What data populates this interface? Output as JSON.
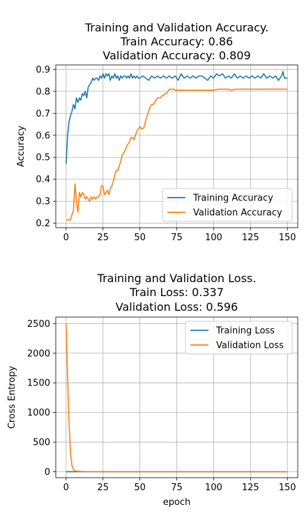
{
  "chart_data": [
    {
      "type": "line",
      "title_lines": [
        "Training and Validation Accuracy.",
        "Train Accuracy: 0.86",
        "Validation Accuracy: 0.809"
      ],
      "xlabel": "",
      "ylabel": "Accuracy",
      "xlim": [
        -7,
        157
      ],
      "ylim": [
        0.18,
        0.92
      ],
      "xticks": [
        0,
        25,
        50,
        75,
        100,
        125,
        150
      ],
      "yticks": [
        0.2,
        0.3,
        0.4,
        0.5,
        0.6,
        0.7,
        0.8,
        0.9
      ],
      "grid": true,
      "legend_position": "lower-right",
      "series": [
        {
          "name": "Training Accuracy",
          "color": "#1f77b4",
          "points": [
            [
              0,
              0.47
            ],
            [
              1,
              0.6
            ],
            [
              2,
              0.66
            ],
            [
              3,
              0.69
            ],
            [
              4,
              0.71
            ],
            [
              5,
              0.74
            ],
            [
              6,
              0.72
            ],
            [
              7,
              0.77
            ],
            [
              8,
              0.75
            ],
            [
              9,
              0.77
            ],
            [
              10,
              0.76
            ],
            [
              11,
              0.79
            ],
            [
              12,
              0.78
            ],
            [
              13,
              0.8
            ],
            [
              14,
              0.77
            ],
            [
              15,
              0.82
            ],
            [
              16,
              0.83
            ],
            [
              17,
              0.84
            ],
            [
              18,
              0.86
            ],
            [
              19,
              0.85
            ],
            [
              20,
              0.86
            ],
            [
              21,
              0.86
            ],
            [
              22,
              0.85
            ],
            [
              23,
              0.87
            ],
            [
              24,
              0.86
            ],
            [
              25,
              0.88
            ],
            [
              26,
              0.86
            ],
            [
              27,
              0.88
            ],
            [
              28,
              0.87
            ],
            [
              29,
              0.88
            ],
            [
              30,
              0.85
            ],
            [
              31,
              0.87
            ],
            [
              32,
              0.86
            ],
            [
              33,
              0.88
            ],
            [
              34,
              0.86
            ],
            [
              35,
              0.87
            ],
            [
              36,
              0.85
            ],
            [
              37,
              0.87
            ],
            [
              38,
              0.86
            ],
            [
              39,
              0.87
            ],
            [
              40,
              0.87
            ],
            [
              41,
              0.86
            ],
            [
              42,
              0.87
            ],
            [
              43,
              0.86
            ],
            [
              44,
              0.88
            ],
            [
              45,
              0.86
            ],
            [
              46,
              0.87
            ],
            [
              47,
              0.86
            ],
            [
              48,
              0.87
            ],
            [
              49,
              0.86
            ],
            [
              50,
              0.86
            ],
            [
              52,
              0.87
            ],
            [
              54,
              0.86
            ],
            [
              56,
              0.85
            ],
            [
              58,
              0.87
            ],
            [
              60,
              0.86
            ],
            [
              62,
              0.87
            ],
            [
              64,
              0.86
            ],
            [
              66,
              0.87
            ],
            [
              68,
              0.86
            ],
            [
              70,
              0.87
            ],
            [
              72,
              0.86
            ],
            [
              74,
              0.87
            ],
            [
              76,
              0.85
            ],
            [
              78,
              0.88
            ],
            [
              80,
              0.86
            ],
            [
              82,
              0.87
            ],
            [
              84,
              0.86
            ],
            [
              86,
              0.87
            ],
            [
              88,
              0.86
            ],
            [
              90,
              0.87
            ],
            [
              92,
              0.87
            ],
            [
              94,
              0.86
            ],
            [
              96,
              0.85
            ],
            [
              98,
              0.87
            ],
            [
              100,
              0.86
            ],
            [
              102,
              0.88
            ],
            [
              104,
              0.87
            ],
            [
              106,
              0.88
            ],
            [
              108,
              0.86
            ],
            [
              110,
              0.87
            ],
            [
              112,
              0.86
            ],
            [
              114,
              0.88
            ],
            [
              116,
              0.86
            ],
            [
              118,
              0.87
            ],
            [
              120,
              0.86
            ],
            [
              122,
              0.87
            ],
            [
              124,
              0.86
            ],
            [
              126,
              0.87
            ],
            [
              128,
              0.86
            ],
            [
              130,
              0.87
            ],
            [
              132,
              0.86
            ],
            [
              134,
              0.88
            ],
            [
              136,
              0.86
            ],
            [
              138,
              0.87
            ],
            [
              140,
              0.86
            ],
            [
              142,
              0.87
            ],
            [
              144,
              0.85
            ],
            [
              146,
              0.87
            ],
            [
              147,
              0.89
            ],
            [
              148,
              0.86
            ],
            [
              150,
              0.86
            ]
          ]
        },
        {
          "name": "Validation Accuracy",
          "color": "#ff7f0e",
          "points": [
            [
              0,
              0.215
            ],
            [
              2,
              0.215
            ],
            [
              3,
              0.215
            ],
            [
              4,
              0.24
            ],
            [
              5,
              0.26
            ],
            [
              6,
              0.38
            ],
            [
              7,
              0.3
            ],
            [
              8,
              0.25
            ],
            [
              9,
              0.34
            ],
            [
              10,
              0.32
            ],
            [
              11,
              0.34
            ],
            [
              12,
              0.33
            ],
            [
              13,
              0.31
            ],
            [
              14,
              0.32
            ],
            [
              15,
              0.31
            ],
            [
              16,
              0.3
            ],
            [
              17,
              0.32
            ],
            [
              18,
              0.31
            ],
            [
              19,
              0.32
            ],
            [
              20,
              0.31
            ],
            [
              21,
              0.32
            ],
            [
              22,
              0.32
            ],
            [
              23,
              0.33
            ],
            [
              24,
              0.37
            ],
            [
              25,
              0.37
            ],
            [
              26,
              0.33
            ],
            [
              27,
              0.34
            ],
            [
              28,
              0.35
            ],
            [
              29,
              0.33
            ],
            [
              30,
              0.36
            ],
            [
              31,
              0.37
            ],
            [
              32,
              0.39
            ],
            [
              33,
              0.42
            ],
            [
              34,
              0.44
            ],
            [
              35,
              0.44
            ],
            [
              36,
              0.46
            ],
            [
              37,
              0.48
            ],
            [
              38,
              0.51
            ],
            [
              39,
              0.52
            ],
            [
              40,
              0.53
            ],
            [
              41,
              0.55
            ],
            [
              42,
              0.56
            ],
            [
              43,
              0.57
            ],
            [
              44,
              0.59
            ],
            [
              45,
              0.59
            ],
            [
              46,
              0.58
            ],
            [
              47,
              0.6
            ],
            [
              48,
              0.62
            ],
            [
              49,
              0.63
            ],
            [
              50,
              0.64
            ],
            [
              51,
              0.63
            ],
            [
              52,
              0.63
            ],
            [
              53,
              0.64
            ],
            [
              54,
              0.67
            ],
            [
              55,
              0.69
            ],
            [
              56,
              0.71
            ],
            [
              57,
              0.73
            ],
            [
              58,
              0.74
            ],
            [
              59,
              0.74
            ],
            [
              60,
              0.75
            ],
            [
              61,
              0.76
            ],
            [
              62,
              0.77
            ],
            [
              63,
              0.77
            ],
            [
              64,
              0.77
            ],
            [
              65,
              0.78
            ],
            [
              66,
              0.78
            ],
            [
              67,
              0.79
            ],
            [
              68,
              0.79
            ],
            [
              69,
              0.8
            ],
            [
              70,
              0.81
            ],
            [
              71,
              0.81
            ],
            [
              72,
              0.81
            ],
            [
              73,
              0.81
            ],
            [
              74,
              0.805
            ],
            [
              80,
              0.805
            ],
            [
              90,
              0.805
            ],
            [
              100,
              0.805
            ],
            [
              103,
              0.81
            ],
            [
              110,
              0.81
            ],
            [
              112,
              0.805
            ],
            [
              115,
              0.81
            ],
            [
              120,
              0.81
            ],
            [
              130,
              0.81
            ],
            [
              140,
              0.81
            ],
            [
              150,
              0.81
            ]
          ]
        }
      ]
    },
    {
      "type": "line",
      "title_lines": [
        "Training and Validation Loss.",
        "Train Loss: 0.337",
        "Validation Loss: 0.596"
      ],
      "xlabel": "epoch",
      "ylabel": "Cross Entropy",
      "xlim": [
        -7,
        157
      ],
      "ylim": [
        -100,
        2610
      ],
      "xticks": [
        0,
        25,
        50,
        75,
        100,
        125,
        150
      ],
      "yticks": [
        0,
        500,
        1000,
        1500,
        2000,
        2500
      ],
      "grid": true,
      "legend_position": "upper-right",
      "series": [
        {
          "name": "Training Loss",
          "color": "#1f77b4",
          "points": [
            [
              0,
              0.9
            ],
            [
              1,
              0.7
            ],
            [
              2,
              0.6
            ],
            [
              5,
              0.5
            ],
            [
              10,
              0.45
            ],
            [
              20,
              0.4
            ],
            [
              50,
              0.36
            ],
            [
              100,
              0.35
            ],
            [
              150,
              0.337
            ]
          ]
        },
        {
          "name": "Validation Loss",
          "color": "#ff7f0e",
          "points": [
            [
              0,
              2500
            ],
            [
              1,
              1600
            ],
            [
              2,
              800
            ],
            [
              3,
              300
            ],
            [
              4,
              100
            ],
            [
              5,
              40
            ],
            [
              6,
              15
            ],
            [
              8,
              8
            ],
            [
              10,
              5
            ],
            [
              15,
              3
            ],
            [
              20,
              2
            ],
            [
              30,
              1.5
            ],
            [
              50,
              1
            ],
            [
              100,
              0.7
            ],
            [
              150,
              0.596
            ]
          ]
        }
      ]
    }
  ]
}
